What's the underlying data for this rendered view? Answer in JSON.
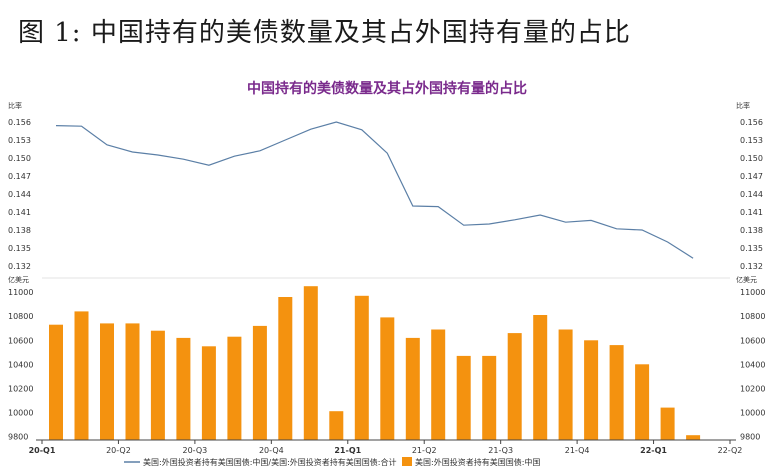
{
  "figure_title": "图 1: 中国持有的美债数量及其占外国持有量的占比",
  "chart_data": {
    "type": "bar+line",
    "title": "中国持有的美债数量及其占外国持有量的占比",
    "top_panel": {
      "unit_label_left": "比率",
      "unit_label_right": "比率",
      "ylim": [
        0.131,
        0.1575
      ],
      "yticks": [
        "0.156",
        "0.153",
        "0.150",
        "0.147",
        "0.144",
        "0.141",
        "0.138",
        "0.135",
        "0.132"
      ],
      "series": [
        {
          "name": "美国:外国投资者持有美国国债:中国/美国:外国投资者持有美国国债:合计",
          "color": "#5b7fa6",
          "values": [
            0.1554,
            0.1553,
            0.1522,
            0.151,
            0.1505,
            0.1498,
            0.1488,
            0.1503,
            0.1512,
            0.153,
            0.1548,
            0.156,
            0.1547,
            0.1508,
            0.142,
            0.1419,
            0.1388,
            0.139,
            0.1397,
            0.1405,
            0.1393,
            0.1396,
            0.1382,
            0.138,
            0.136,
            0.1333
          ]
        }
      ]
    },
    "bottom_panel": {
      "unit_label_left": "亿美元",
      "unit_label_right": "亿美元",
      "ylim": [
        9770,
        11060
      ],
      "yticks": [
        "11000",
        "10800",
        "10600",
        "10400",
        "10200",
        "10000",
        "9800"
      ],
      "series": [
        {
          "name": "美国:外国投资者持有美国国债:中国",
          "color": "#f4920f",
          "values": [
            10730,
            10840,
            10740,
            10740,
            10680,
            10620,
            10550,
            10630,
            10720,
            10960,
            11050,
            10010,
            10970,
            10790,
            10620,
            10690,
            10470,
            10470,
            10660,
            10810,
            10690,
            10600,
            10560,
            10400,
            10040,
            9810
          ]
        }
      ]
    },
    "x_ticks": [
      {
        "label": "20-Q1",
        "index": 0,
        "bold": true
      },
      {
        "label": "20-Q2",
        "index": 3,
        "bold": false
      },
      {
        "label": "20-Q3",
        "index": 6,
        "bold": false
      },
      {
        "label": "20-Q4",
        "index": 9,
        "bold": false
      },
      {
        "label": "21-Q1",
        "index": 12,
        "bold": true
      },
      {
        "label": "21-Q2",
        "index": 15,
        "bold": false
      },
      {
        "label": "21-Q3",
        "index": 18,
        "bold": false
      },
      {
        "label": "21-Q4",
        "index": 21,
        "bold": false
      },
      {
        "label": "22-Q1",
        "index": 24,
        "bold": true
      },
      {
        "label": "22-Q2",
        "index": 27,
        "bold": false
      }
    ],
    "legend": {
      "line_label": "美国:外国投资者持有美国国债:中国/美国:外国投资者持有美国国债:合计",
      "bar_label": "美国:外国投资者持有美国国债:中国"
    }
  }
}
